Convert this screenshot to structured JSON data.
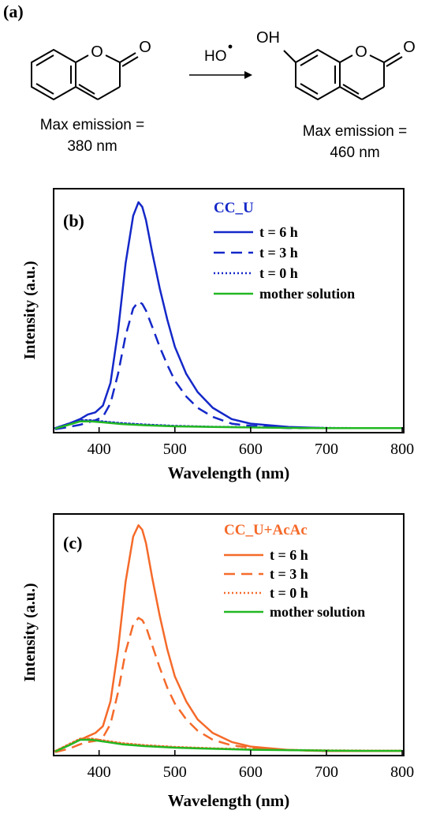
{
  "panel_a": {
    "label": "(a)",
    "reagent": "HO",
    "reactant_caption": [
      "Max emission =",
      "380 nm"
    ],
    "product_caption": [
      "Max emission =",
      "460 nm"
    ],
    "substituent": "OH",
    "ring_o": "O",
    "carbonyl_o": "O"
  },
  "colors": {
    "cc_u": "#1428c8",
    "cc_u_acac": "#f56a2a",
    "mother": "#22b822"
  },
  "chart_data": [
    {
      "type": "line",
      "panel_label": "(b)",
      "legend_title": "CC_U",
      "xlabel": "Wavelength (nm)",
      "ylabel": "Intensity (a.u.)",
      "xlim": [
        340,
        802
      ],
      "ylim": [
        0,
        1.08
      ],
      "x_ticks": [
        400,
        500,
        600,
        700,
        800
      ],
      "grid": false,
      "legend_position": "top-right",
      "series": [
        {
          "name": "t = 6 h",
          "style": "solid",
          "color": "#1428c8",
          "x": [
            342,
            360,
            375,
            385,
            395,
            405,
            415,
            425,
            435,
            445,
            452,
            457,
            462,
            470,
            480,
            490,
            500,
            515,
            530,
            550,
            575,
            600,
            650,
            700,
            750,
            800
          ],
          "y": [
            0.02,
            0.04,
            0.06,
            0.08,
            0.09,
            0.12,
            0.22,
            0.45,
            0.75,
            0.96,
            1.02,
            1.0,
            0.94,
            0.8,
            0.64,
            0.5,
            0.38,
            0.26,
            0.18,
            0.11,
            0.06,
            0.04,
            0.025,
            0.02,
            0.02,
            0.02
          ]
        },
        {
          "name": "t = 3 h",
          "style": "dashed",
          "color": "#1428c8",
          "x": [
            342,
            360,
            375,
            385,
            395,
            405,
            415,
            425,
            435,
            445,
            452,
            457,
            462,
            470,
            480,
            490,
            500,
            515,
            530,
            550,
            575,
            600,
            650,
            700,
            750,
            800
          ],
          "y": [
            0.015,
            0.025,
            0.035,
            0.045,
            0.055,
            0.07,
            0.13,
            0.26,
            0.43,
            0.55,
            0.58,
            0.57,
            0.54,
            0.47,
            0.38,
            0.3,
            0.23,
            0.16,
            0.11,
            0.07,
            0.04,
            0.03,
            0.02,
            0.02,
            0.02,
            0.02
          ]
        },
        {
          "name": "t = 0 h",
          "style": "dotted",
          "color": "#1428c8",
          "x": [
            342,
            360,
            375,
            390,
            410,
            430,
            460,
            500,
            550,
            600,
            650,
            700,
            750,
            800
          ],
          "y": [
            0.02,
            0.04,
            0.055,
            0.055,
            0.048,
            0.042,
            0.036,
            0.03,
            0.026,
            0.024,
            0.022,
            0.021,
            0.02,
            0.02
          ]
        },
        {
          "name": "mother solution",
          "style": "solid",
          "color": "#22b822",
          "x": [
            342,
            360,
            375,
            390,
            410,
            430,
            460,
            500,
            550,
            600,
            650,
            700,
            750,
            800
          ],
          "y": [
            0.018,
            0.035,
            0.05,
            0.05,
            0.044,
            0.038,
            0.033,
            0.028,
            0.025,
            0.023,
            0.021,
            0.02,
            0.02,
            0.02
          ]
        }
      ]
    },
    {
      "type": "line",
      "panel_label": "(c)",
      "legend_title": "CC_U+AcAc",
      "xlabel": "Wavelength (nm)",
      "ylabel": "Intensity (a.u.)",
      "xlim": [
        340,
        802
      ],
      "ylim": [
        0,
        1.07
      ],
      "x_ticks": [
        400,
        500,
        600,
        700,
        800
      ],
      "grid": false,
      "legend_position": "top-right",
      "series": [
        {
          "name": "t = 6 h",
          "style": "solid",
          "color": "#f56a2a",
          "x": [
            342,
            360,
            375,
            385,
            395,
            405,
            415,
            425,
            435,
            445,
            452,
            457,
            462,
            470,
            480,
            490,
            500,
            515,
            530,
            550,
            575,
            600,
            650,
            700,
            750,
            800
          ],
          "y": [
            0.02,
            0.045,
            0.07,
            0.085,
            0.1,
            0.13,
            0.24,
            0.47,
            0.77,
            0.97,
            1.02,
            1.0,
            0.94,
            0.79,
            0.62,
            0.47,
            0.35,
            0.24,
            0.16,
            0.1,
            0.06,
            0.04,
            0.025,
            0.02,
            0.02,
            0.02
          ]
        },
        {
          "name": "t = 3 h",
          "style": "dashed",
          "color": "#f56a2a",
          "x": [
            342,
            360,
            375,
            385,
            395,
            405,
            415,
            425,
            435,
            445,
            452,
            457,
            462,
            470,
            480,
            490,
            500,
            515,
            530,
            550,
            575,
            600,
            650,
            700,
            750,
            800
          ],
          "y": [
            0.015,
            0.03,
            0.05,
            0.06,
            0.065,
            0.08,
            0.14,
            0.28,
            0.46,
            0.58,
            0.61,
            0.6,
            0.57,
            0.49,
            0.39,
            0.3,
            0.23,
            0.16,
            0.11,
            0.07,
            0.045,
            0.035,
            0.025,
            0.02,
            0.02,
            0.02
          ]
        },
        {
          "name": "t = 0 h",
          "style": "dotted",
          "color": "#f56a2a",
          "x": [
            342,
            360,
            375,
            390,
            410,
            430,
            460,
            500,
            550,
            600,
            650,
            700,
            750,
            800
          ],
          "y": [
            0.02,
            0.05,
            0.075,
            0.075,
            0.065,
            0.055,
            0.046,
            0.038,
            0.032,
            0.028,
            0.025,
            0.023,
            0.022,
            0.022
          ]
        },
        {
          "name": "mother solution",
          "style": "solid",
          "color": "#22b822",
          "x": [
            342,
            360,
            375,
            390,
            410,
            430,
            460,
            500,
            550,
            600,
            650,
            700,
            750,
            800
          ],
          "y": [
            0.018,
            0.045,
            0.07,
            0.07,
            0.06,
            0.05,
            0.042,
            0.035,
            0.03,
            0.026,
            0.024,
            0.022,
            0.021,
            0.021
          ]
        }
      ]
    }
  ]
}
